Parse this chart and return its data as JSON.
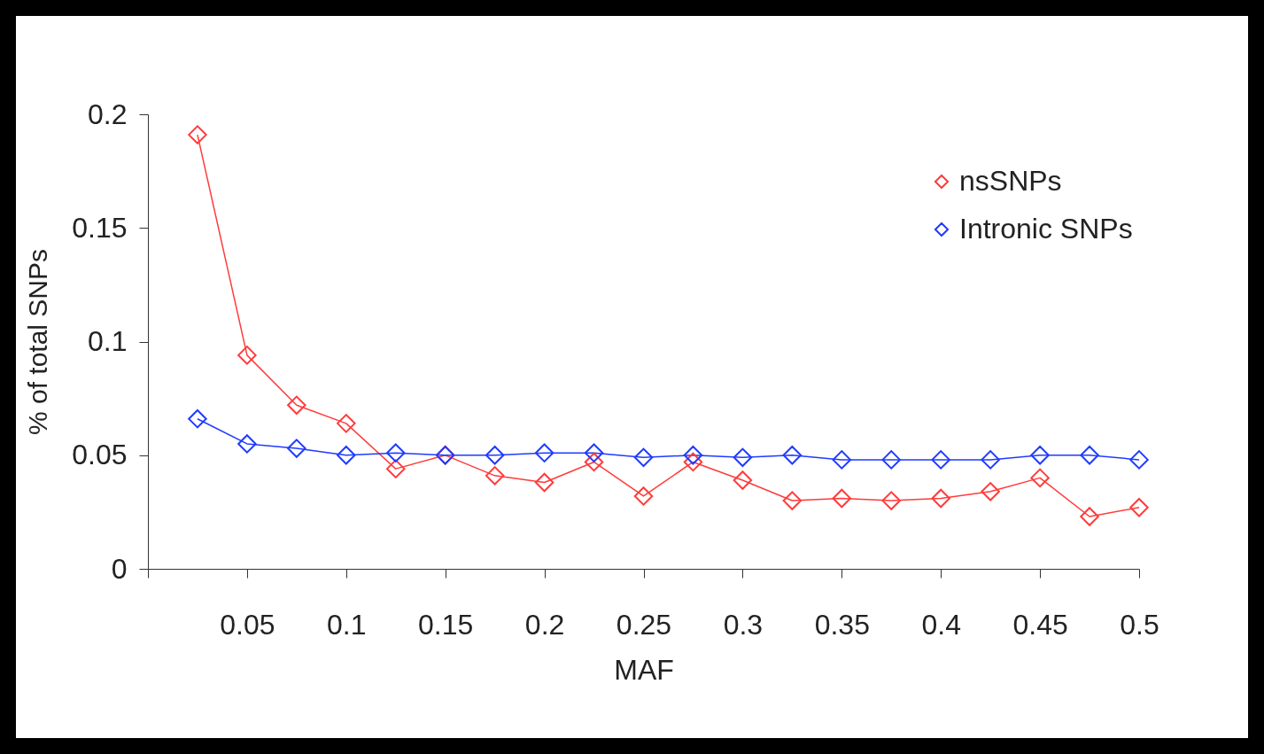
{
  "chart_data": {
    "type": "line",
    "xlabel": "MAF",
    "ylabel": "% of total SNPs",
    "x": [
      0.025,
      0.05,
      0.075,
      0.1,
      0.125,
      0.15,
      0.175,
      0.2,
      0.225,
      0.25,
      0.275,
      0.3,
      0.325,
      0.35,
      0.375,
      0.4,
      0.425,
      0.45,
      0.475,
      0.5
    ],
    "series": [
      {
        "name": "nsSNPs",
        "color": "#ff3b3b",
        "values": [
          0.191,
          0.094,
          0.072,
          0.064,
          0.044,
          0.05,
          0.041,
          0.038,
          0.047,
          0.032,
          0.047,
          0.039,
          0.03,
          0.031,
          0.03,
          0.031,
          0.034,
          0.04,
          0.023,
          0.027
        ]
      },
      {
        "name": "Intronic SNPs",
        "color": "#1f3bff",
        "values": [
          0.066,
          0.055,
          0.053,
          0.05,
          0.051,
          0.05,
          0.05,
          0.051,
          0.051,
          0.049,
          0.05,
          0.049,
          0.05,
          0.048,
          0.048,
          0.048,
          0.048,
          0.05,
          0.05,
          0.048
        ]
      }
    ],
    "xlim": [
      0,
      0.5
    ],
    "xticks": [
      {
        "value": 0,
        "label": null
      },
      0.05,
      0.1,
      0.15,
      0.2,
      0.25,
      0.3,
      0.35,
      0.4,
      0.45,
      0.5
    ],
    "ylim": [
      0,
      0.2
    ],
    "yticks": [
      0,
      0.05,
      0.1,
      0.15,
      0.2
    ],
    "grid": false,
    "legend": "top right",
    "marker": "diamond",
    "line_style": "solid"
  }
}
